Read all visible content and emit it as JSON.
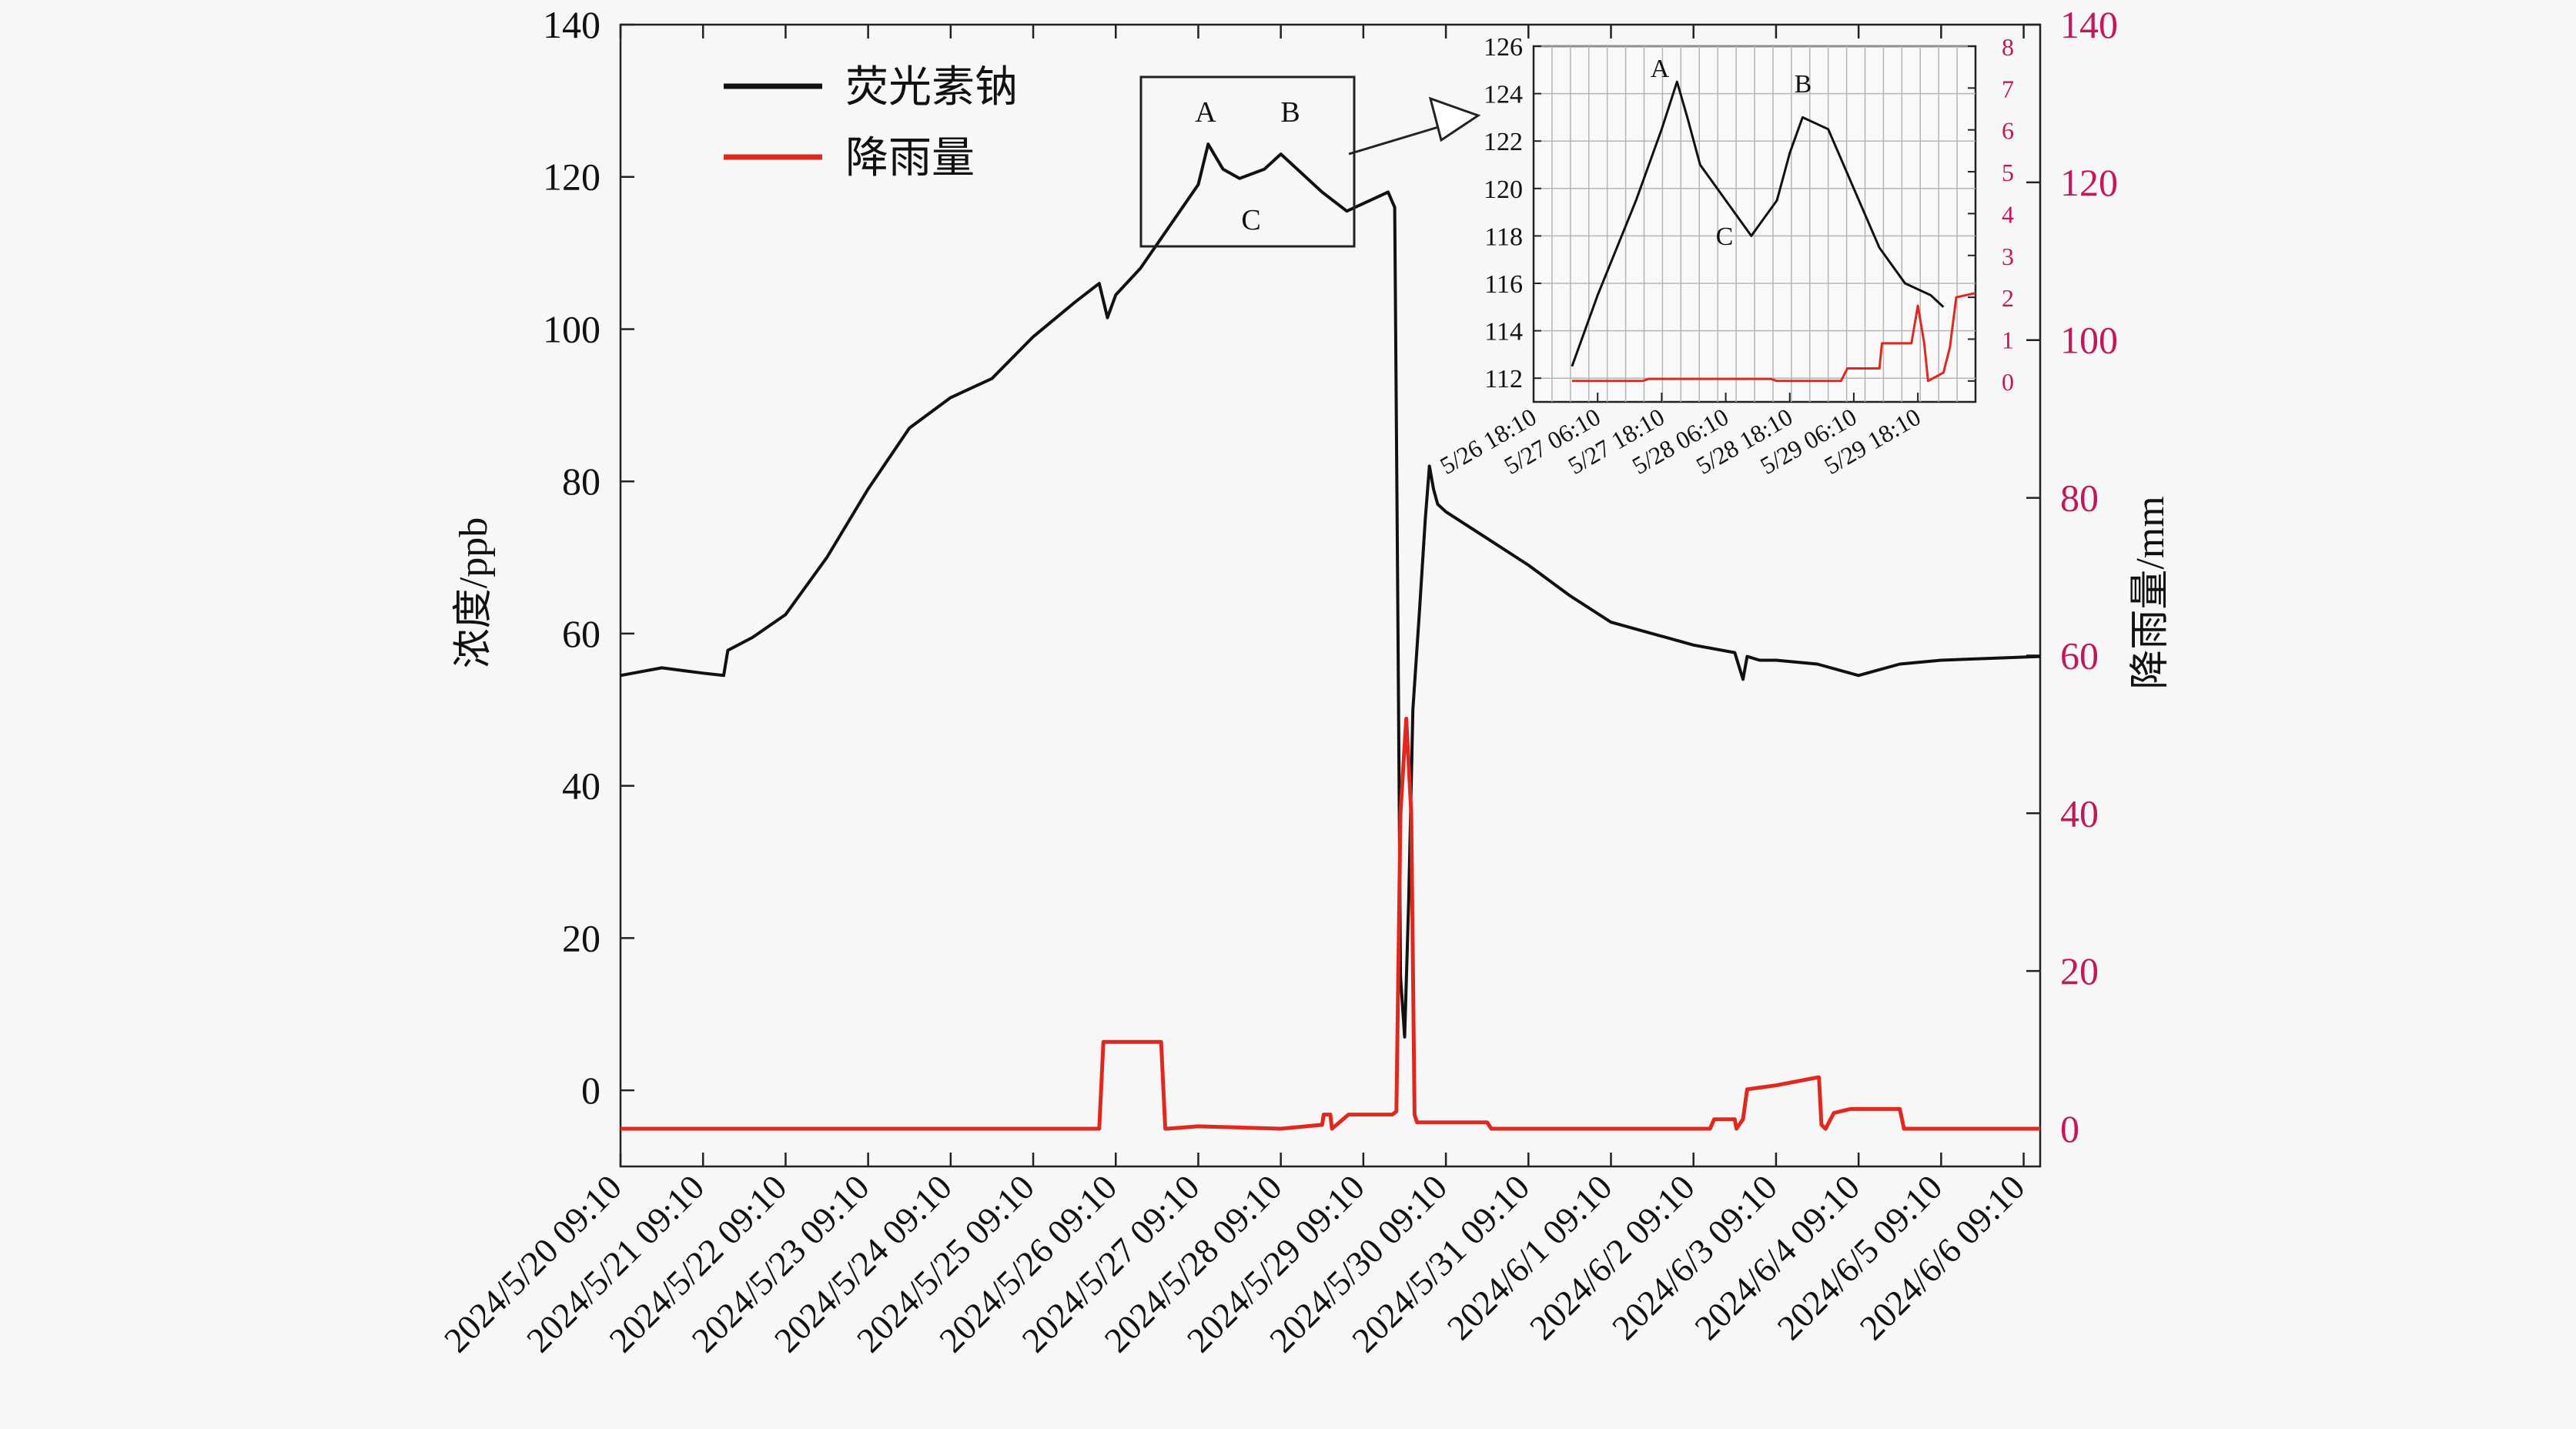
{
  "chart_data": {
    "type": "line",
    "legend_position": "top-left",
    "grid": false,
    "main": {
      "ylabel_left": "浓度/ppb",
      "ylabel_right": "降雨量/mm",
      "ylim_left": [
        -10,
        140
      ],
      "ylim_right": [
        0,
        140
      ],
      "yticks_left": [
        "0",
        "20",
        "40",
        "60",
        "80",
        "100",
        "120",
        "140"
      ],
      "yticks_right": [
        "0",
        "20",
        "40",
        "60",
        "80",
        "100",
        "120",
        "140"
      ],
      "x_range_days": [
        0,
        17.2
      ],
      "xtick_labels": [
        "2024/5/20 09:10",
        "2024/5/21 09:10",
        "2024/5/22 09:10",
        "2024/5/23 09:10",
        "2024/5/24 09:10",
        "2024/5/25 09:10",
        "2024/5/26 09:10",
        "2024/5/27 09:10",
        "2024/5/28 09:10",
        "2024/5/29 09:10",
        "2024/5/30 09:10",
        "2024/5/31 09:10",
        "2024/6/1 09:10",
        "2024/6/2 09:10",
        "2024/6/3 09:10",
        "2024/6/4 09:10",
        "2024/6/5 09:10",
        "2024/6/6 09:10"
      ],
      "series": [
        {
          "name": "荧光素钠",
          "color": "#111111",
          "axis": "left",
          "x": [
            0,
            0.5,
            1.0,
            1.25,
            1.3,
            1.6,
            2.0,
            2.5,
            3.0,
            3.5,
            4.0,
            4.5,
            5.0,
            5.5,
            5.8,
            5.9,
            6.0,
            6.3,
            7.0,
            7.12,
            7.3,
            7.5,
            7.8,
            8.0,
            8.2,
            8.5,
            8.8,
            9.0,
            9.3,
            9.38,
            9.42,
            9.45,
            9.5,
            9.55,
            9.6,
            9.68,
            9.75,
            9.8,
            9.85,
            9.9,
            10.0,
            10.5,
            11.0,
            11.5,
            12.0,
            12.5,
            13.0,
            13.5,
            13.6,
            13.65,
            13.8,
            14.0,
            14.5,
            15.0,
            15.5,
            16.0,
            17.2
          ],
          "y": [
            54.5,
            55.5,
            54.8,
            54.5,
            57.8,
            59.5,
            62.5,
            70.0,
            79.0,
            87.0,
            91.0,
            93.5,
            99.0,
            103.5,
            106.0,
            101.5,
            104.5,
            108.0,
            119.0,
            124.3,
            121.0,
            119.8,
            121.0,
            123.0,
            121.0,
            118.0,
            115.5,
            116.5,
            118.0,
            116.0,
            60.0,
            15.0,
            7.0,
            25.0,
            50.0,
            63.0,
            75.0,
            82.0,
            79.0,
            77.0,
            76.0,
            72.5,
            69.0,
            65.0,
            61.5,
            60.0,
            58.5,
            57.5,
            54.0,
            57.0,
            56.5,
            56.5,
            56.0,
            54.5,
            56.0,
            56.5,
            57.0
          ]
        },
        {
          "name": "降雨量",
          "color": "#e0281e",
          "axis": "right",
          "x": [
            0,
            5.8,
            5.85,
            6.55,
            6.6,
            6.62,
            7.0,
            8.0,
            8.5,
            8.52,
            8.6,
            8.62,
            8.82,
            8.85,
            9.35,
            9.4,
            9.45,
            9.52,
            9.58,
            9.62,
            9.65,
            10.5,
            10.55,
            13.2,
            13.25,
            13.5,
            13.52,
            13.6,
            13.65,
            14.0,
            14.5,
            14.52,
            14.55,
            14.6,
            14.7,
            14.9,
            15.5,
            15.55,
            17.2
          ],
          "y": [
            0,
            0,
            11,
            11,
            0,
            0,
            0.3,
            0,
            0.5,
            1.8,
            1.8,
            0,
            1.8,
            1.8,
            1.8,
            2.2,
            40,
            52,
            40,
            1.8,
            0.8,
            0.8,
            0,
            0,
            1.2,
            1.2,
            0,
            1.2,
            5,
            5.5,
            6.5,
            6.5,
            0.5,
            0,
            2.0,
            2.5,
            2.5,
            0,
            0
          ]
        }
      ],
      "annotations": [
        "A",
        "B",
        "C"
      ]
    },
    "inset": {
      "ylim_left": [
        111,
        126
      ],
      "ylim_right": [
        -0.5,
        8
      ],
      "yticks_left": [
        "112",
        "114",
        "116",
        "118",
        "120",
        "122",
        "124",
        "126"
      ],
      "yticks_right": [
        "0",
        "1",
        "2",
        "3",
        "4",
        "5",
        "6",
        "7",
        "8"
      ],
      "x_range_days": [
        6.0,
        9.45
      ],
      "xtick_labels": [
        "5/26 18:10",
        "5/27 06:10",
        "5/27 18:10",
        "5/28 06:10",
        "5/28 18:10",
        "5/29 06:10",
        "5/29 18:10"
      ],
      "grid": true,
      "series": [
        {
          "name": "荧光素钠",
          "color": "#111111",
          "axis": "left",
          "x": [
            6.3,
            6.5,
            6.8,
            7.0,
            7.12,
            7.2,
            7.3,
            7.5,
            7.7,
            7.9,
            8.0,
            8.1,
            8.3,
            8.5,
            8.7,
            8.9,
            9.1,
            9.2
          ],
          "y": [
            112.5,
            115.5,
            119.5,
            122.5,
            124.5,
            123.0,
            121.0,
            119.5,
            118.0,
            119.5,
            121.5,
            123.0,
            122.5,
            120.0,
            117.5,
            116.0,
            115.5,
            115.0
          ]
        },
        {
          "name": "降雨量",
          "color": "#e0281e",
          "axis": "right",
          "x": [
            6.3,
            6.85,
            6.9,
            7.85,
            7.9,
            8.4,
            8.45,
            8.7,
            8.72,
            8.95,
            9.0,
            9.05,
            9.08,
            9.2,
            9.25,
            9.3,
            9.45
          ],
          "y": [
            0,
            0,
            0.05,
            0.05,
            0,
            0,
            0.3,
            0.3,
            0.9,
            0.9,
            1.8,
            0.9,
            0,
            0.2,
            0.8,
            2.0,
            2.1
          ]
        }
      ],
      "annotations": [
        "A",
        "B",
        "C"
      ]
    }
  }
}
